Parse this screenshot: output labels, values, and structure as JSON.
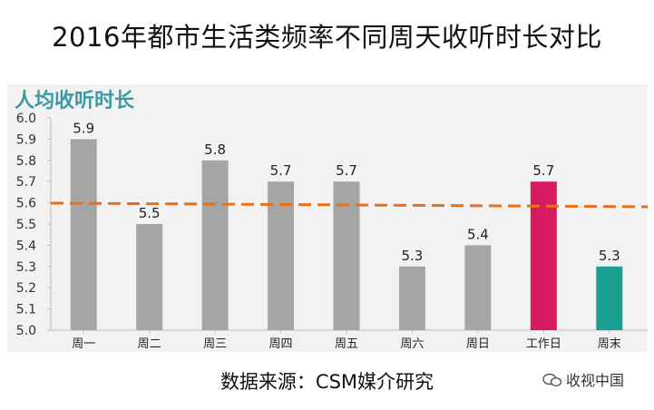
{
  "title": "2016年都市生活类频率不同周天收听时长对比",
  "panel_title": "人均收听时长",
  "source": "数据来源：CSM媒介研究",
  "watermark": "收视中国",
  "chart_data": {
    "type": "bar",
    "categories": [
      "周一",
      "周二",
      "周三",
      "周四",
      "周五",
      "周六",
      "周日",
      "工作日",
      "周末"
    ],
    "values": [
      5.9,
      5.5,
      5.8,
      5.7,
      5.7,
      5.3,
      5.4,
      5.7,
      5.3
    ],
    "bar_colors": [
      "#a5a5a5",
      "#a5a5a5",
      "#a5a5a5",
      "#a5a5a5",
      "#a5a5a5",
      "#a5a5a5",
      "#a5a5a5",
      "#d81b60",
      "#1a9e8f"
    ],
    "ylim": [
      5.0,
      6.0
    ],
    "yticks": [
      "5.0",
      "5.1",
      "5.2",
      "5.3",
      "5.4",
      "5.5",
      "5.6",
      "5.7",
      "5.8",
      "5.9",
      "6.0"
    ],
    "reference_line": {
      "value": 5.59,
      "color": "#e8701a",
      "style": "dashed"
    },
    "grid": false,
    "xlabel": "",
    "ylabel": ""
  }
}
